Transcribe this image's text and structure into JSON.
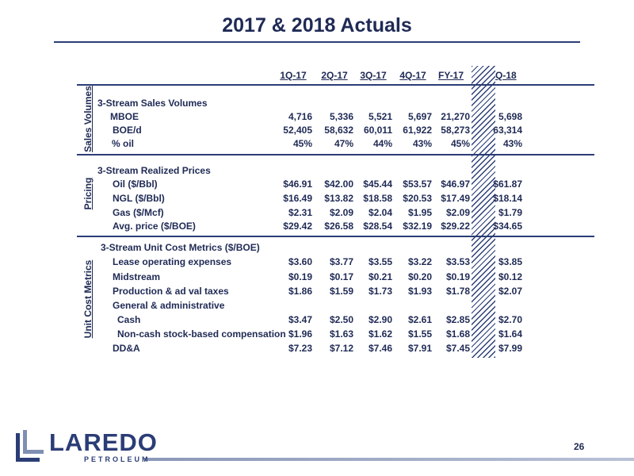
{
  "title": "2017 & 2018 Actuals",
  "columns": [
    "1Q-17",
    "2Q-17",
    "3Q-17",
    "4Q-17",
    "FY-17",
    "1Q-18"
  ],
  "sections": {
    "sales": {
      "vlabel": "Sales Volumes",
      "heading": "3-Stream Sales Volumes",
      "rows": [
        {
          "label": "MBOE",
          "values": [
            "4,716",
            "5,336",
            "5,521",
            "5,697",
            "21,270",
            "5,698"
          ]
        },
        {
          "label": "BOE/d",
          "values": [
            "52,405",
            "58,632",
            "60,011",
            "61,922",
            "58,273",
            "63,314"
          ]
        },
        {
          "label": "% oil",
          "values": [
            "45%",
            "47%",
            "44%",
            "43%",
            "45%",
            "43%"
          ]
        }
      ]
    },
    "pricing": {
      "vlabel": "Pricing",
      "heading": "3-Stream Realized Prices",
      "rows": [
        {
          "label": "Oil ($/Bbl)",
          "values": [
            "$46.91",
            "$42.00",
            "$45.44",
            "$53.57",
            "$46.97",
            "$61.87"
          ]
        },
        {
          "label": "NGL ($/Bbl)",
          "values": [
            "$16.49",
            "$13.82",
            "$18.58",
            "$20.53",
            "$17.49",
            "$18.14"
          ]
        },
        {
          "label": "Gas ($/Mcf)",
          "values": [
            "$2.31",
            "$2.09",
            "$2.04",
            "$1.95",
            "$2.09",
            "$1.79"
          ]
        },
        {
          "label": "Avg. price ($/BOE)",
          "values": [
            "$29.42",
            "$26.58",
            "$28.54",
            "$32.19",
            "$29.22",
            "$34.65"
          ]
        }
      ]
    },
    "costs": {
      "vlabel": "Unit Cost Metrics",
      "heading": "3-Stream Unit Cost Metrics ($/BOE)",
      "rows": [
        {
          "label": "Lease operating expenses",
          "values": [
            "$3.60",
            "$3.77",
            "$3.55",
            "$3.22",
            "$3.53",
            "$3.85"
          ]
        },
        {
          "label": "Midstream",
          "values": [
            "$0.19",
            "$0.17",
            "$0.21",
            "$0.20",
            "$0.19",
            "$0.12"
          ]
        },
        {
          "label": "Production & ad val taxes",
          "values": [
            "$1.86",
            "$1.59",
            "$1.73",
            "$1.93",
            "$1.78",
            "$2.07"
          ]
        },
        {
          "label": "General & administrative",
          "values": [
            "",
            "",
            "",
            "",
            "",
            ""
          ]
        },
        {
          "label": "Cash",
          "values": [
            "$3.47",
            "$2.50",
            "$2.90",
            "$2.61",
            "$2.85",
            "$2.70"
          ]
        },
        {
          "label": "Non-cash stock-based compensation",
          "values": [
            "$1.96",
            "$1.63",
            "$1.62",
            "$1.55",
            "$1.68",
            "$1.64"
          ]
        },
        {
          "label": "DD&A",
          "values": [
            "$7.23",
            "$7.12",
            "$7.46",
            "$7.91",
            "$7.45",
            "$7.99"
          ]
        }
      ]
    }
  },
  "page_number": "26",
  "logo": {
    "word": "LAREDO",
    "sub": "PETROLEUM"
  }
}
